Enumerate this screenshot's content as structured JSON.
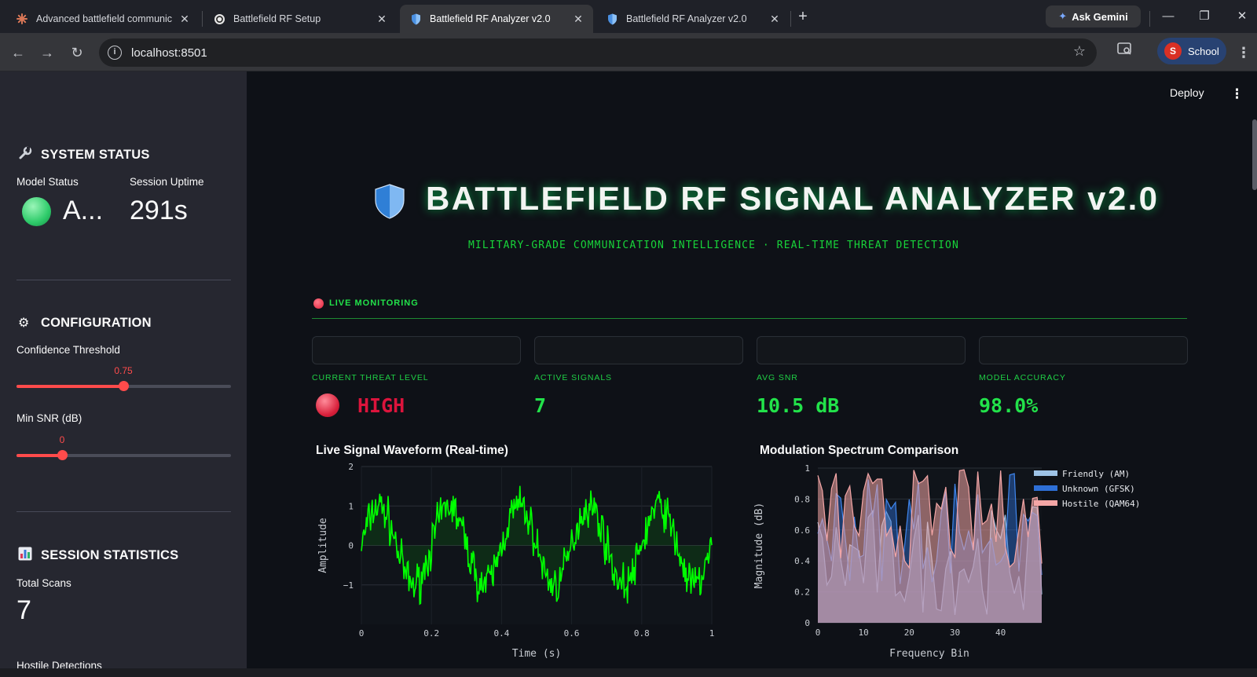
{
  "browser": {
    "tabs": [
      {
        "title": "Advanced battlefield communic",
        "icon": "claude-asterisk-icon",
        "active": false
      },
      {
        "title": "Battlefield RF Setup",
        "icon": "chatgpt-icon",
        "active": false
      },
      {
        "title": "Battlefield RF Analyzer v2.0",
        "icon": "shield-icon",
        "active": true
      },
      {
        "title": "Battlefield RF Analyzer v2.0",
        "icon": "shield-icon",
        "active": false
      }
    ],
    "ask_gemini": "Ask Gemini",
    "url": "localhost:8501",
    "profile_initial": "S",
    "profile_name": "School"
  },
  "header": {
    "deploy": "Deploy"
  },
  "sidebar": {
    "system_status": {
      "title": "SYSTEM STATUS",
      "model_status_label": "Model Status",
      "model_status_value": "A...",
      "uptime_label": "Session Uptime",
      "uptime_value": "291s"
    },
    "configuration": {
      "title": "CONFIGURATION",
      "confidence": {
        "label": "Confidence Threshold",
        "value": "0.75",
        "fraction": 0.5
      },
      "min_snr": {
        "label": "Min SNR (dB)",
        "value": "0",
        "fraction": 0.2
      }
    },
    "session_statistics": {
      "title": "SESSION STATISTICS",
      "total_scans_label": "Total Scans",
      "total_scans_value": "7",
      "hostile_label": "Hostile Detections"
    }
  },
  "main": {
    "title": "BATTLEFIELD RF SIGNAL ANALYZER v2.0",
    "subtitle": "MILITARY-GRADE COMMUNICATION INTELLIGENCE · REAL-TIME THREAT DETECTION",
    "live_label": "LIVE MONITORING",
    "metrics": [
      {
        "label": "CURRENT THREAT LEVEL",
        "value": "HIGH"
      },
      {
        "label": "ACTIVE SIGNALS",
        "value": "7"
      },
      {
        "label": "AVG SNR",
        "value": "10.5 dB"
      },
      {
        "label": "MODEL ACCURACY",
        "value": "98.0%"
      }
    ],
    "colors": {
      "accent_green": "#22e24a",
      "threat_red": "#dc143c",
      "streamlit_red": "#ff4b4b"
    }
  },
  "chart_data": [
    {
      "type": "line",
      "title": "Live Signal Waveform (Real-time)",
      "xlabel": "Time (s)",
      "ylabel": "Amplitude",
      "xlim": [
        0,
        1
      ],
      "ylim": [
        -2,
        2
      ],
      "xticks": [
        "0",
        "0.2",
        "0.4",
        "0.6",
        "0.8",
        "1"
      ],
      "yticks": [
        "2",
        "1",
        "0",
        "−1"
      ],
      "series": [
        {
          "frequency_hz": 5,
          "amplitude": 1,
          "noise": "gaussian",
          "color": "#00ff00"
        }
      ]
    },
    {
      "type": "area",
      "title": "Modulation Spectrum Comparison",
      "xlabel": "Frequency Bin",
      "ylabel": "Magnitude (dB)",
      "xlim": [
        0,
        49
      ],
      "ylim": [
        0,
        1
      ],
      "xticks": [
        "0",
        "10",
        "20",
        "30",
        "40"
      ],
      "yticks": [
        "1",
        "0.8",
        "0.6",
        "0.4",
        "0.2",
        "0"
      ],
      "legend": "top-right",
      "series": [
        {
          "name": "Friendly (AM)",
          "color": "#9ec3e6"
        },
        {
          "name": "Unknown (GFSK)",
          "color": "#2e6fd6"
        },
        {
          "name": "Hostile (QAM64)",
          "color": "#f4a6a6"
        }
      ]
    }
  ]
}
